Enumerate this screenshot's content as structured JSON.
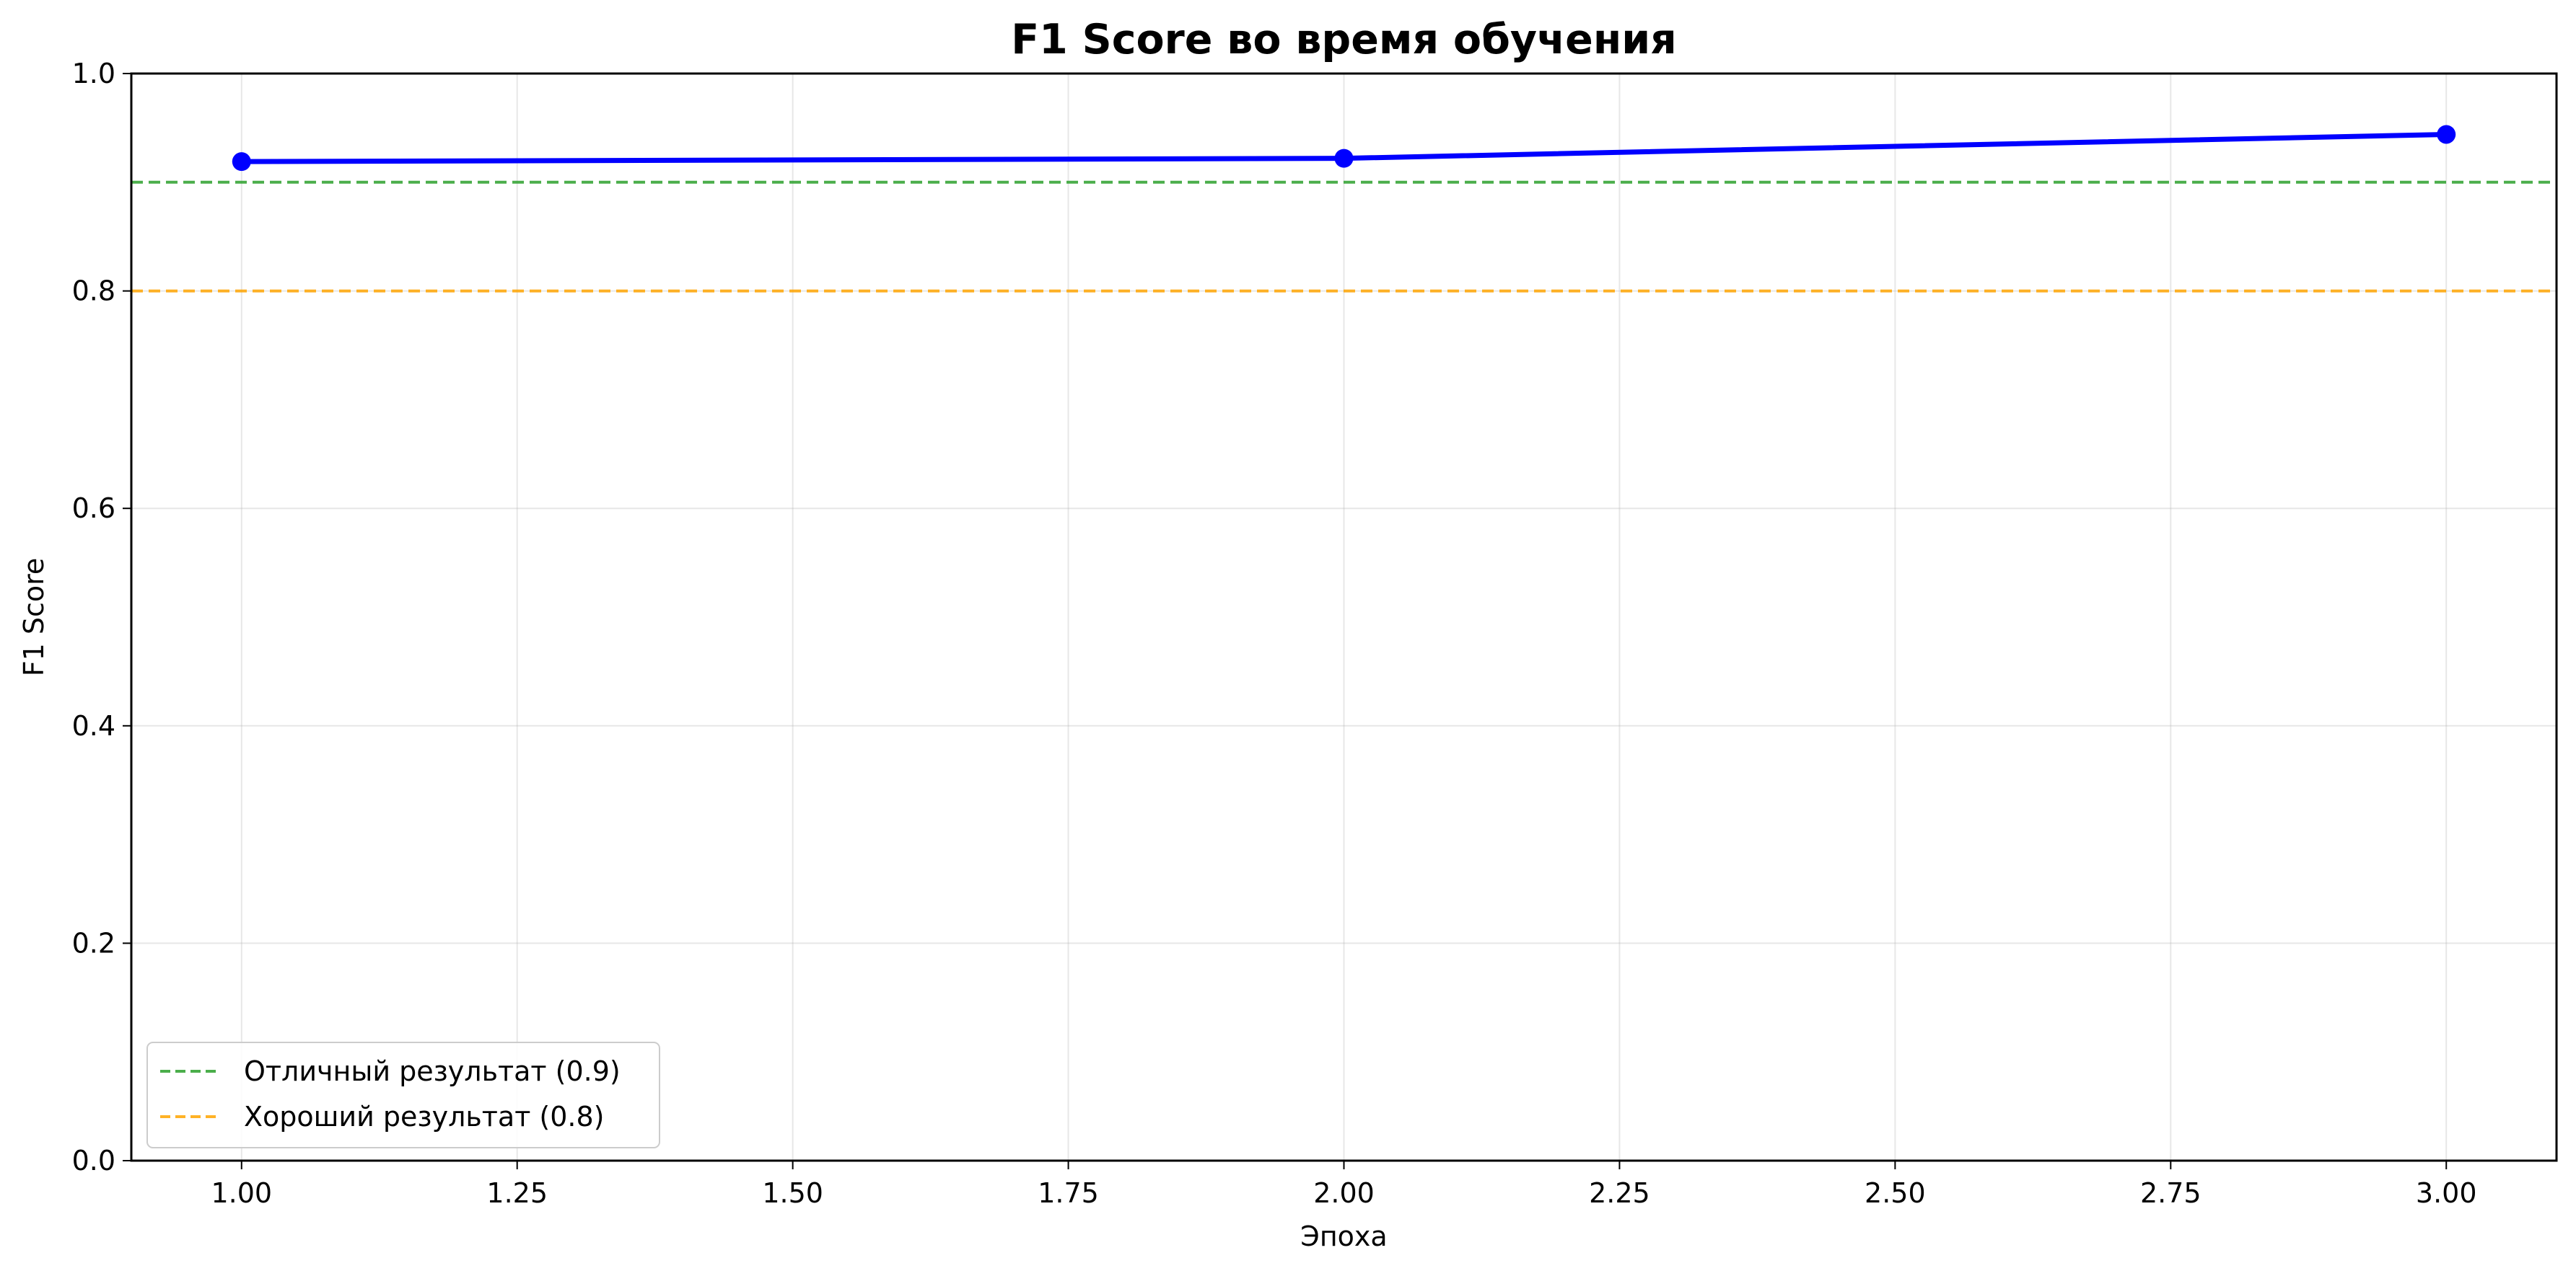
{
  "chart_data": {
    "type": "line",
    "title": "F1 Score во время обучения",
    "xlabel": "Эпоха",
    "ylabel": "F1 Score",
    "xlim": [
      0.9,
      3.1
    ],
    "ylim": [
      0.0,
      1.0
    ],
    "xticks": [
      "1.00",
      "1.25",
      "1.50",
      "1.75",
      "2.00",
      "2.25",
      "2.50",
      "2.75",
      "3.00"
    ],
    "yticks": [
      "0.0",
      "0.2",
      "0.4",
      "0.6",
      "0.8",
      "1.0"
    ],
    "grid": true,
    "series": [
      {
        "x": [
          1,
          2,
          3
        ],
        "y": [
          0.919,
          0.922,
          0.944
        ],
        "color": "#0000ff",
        "marker": "circle"
      }
    ],
    "reference_lines": [
      {
        "name": "Отличный результат (0.9)",
        "y": 0.9,
        "color": "#2ca02c",
        "style": "dashed"
      },
      {
        "name": "Хороший результат (0.8)",
        "y": 0.8,
        "color": "#ffa500",
        "style": "dashed"
      }
    ],
    "legend_position": "bottom-left"
  }
}
